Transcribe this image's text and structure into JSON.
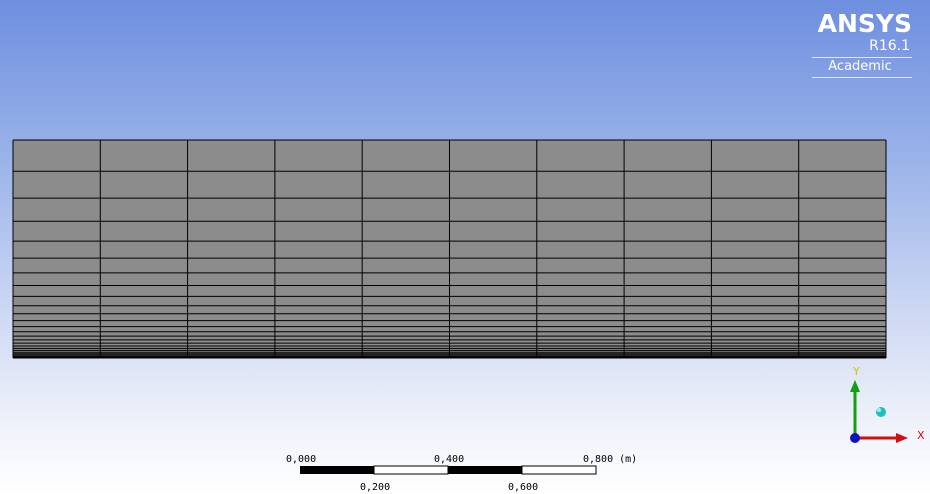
{
  "logo": {
    "brand": "ANSYS",
    "release": "R16.1",
    "edition": "Academic"
  },
  "mesh": {
    "face_color": "#8c8c8c",
    "edge_color": "#000000",
    "column_count": 10,
    "row_count": 25
  },
  "scale": {
    "top_labels": [
      "0,000",
      "0,400",
      "0,800 (m)"
    ],
    "bottom_labels": [
      "0,200",
      "0,600"
    ]
  },
  "triad": {
    "x_label": "X",
    "y_label": "Y",
    "x_color": "#d01010",
    "y_color": "#10a010",
    "z_color": "#1010c0",
    "iso_color": "#20c0c0"
  },
  "colors": {
    "background_top": "#6e8fdf",
    "background_bottom": "#ffffff"
  }
}
